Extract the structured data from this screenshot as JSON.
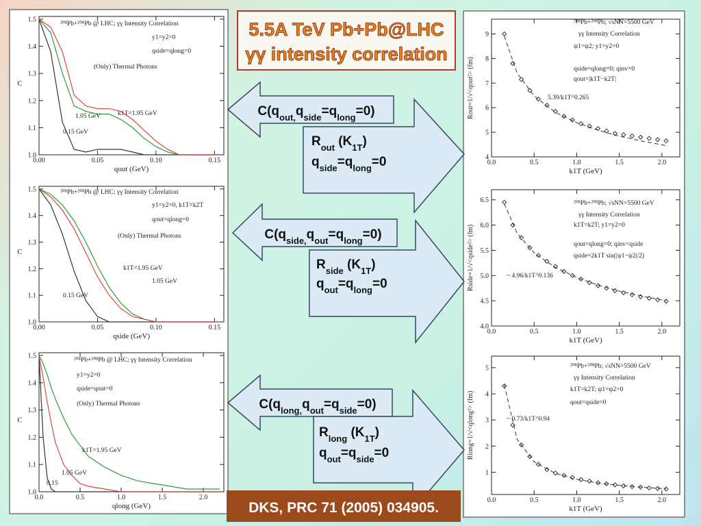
{
  "slide": {
    "title": [
      "5.5A TeV Pb+Pb@LHC",
      "γγ intensity correlation"
    ],
    "citation": "DKS, PRC 71 (2005) 034905.",
    "arrows": [
      {
        "correlator": [
          "C(q",
          "out,",
          "q",
          "side",
          "=q",
          "long",
          "=0)"
        ],
        "radius": [
          "R",
          "out",
          " (K",
          "1T",
          ")"
        ],
        "condition": [
          "q",
          "side",
          "=q",
          "long",
          "=0"
        ]
      },
      {
        "correlator": [
          "C(q",
          "side,",
          "q",
          "out",
          "=q",
          "long",
          "=0)"
        ],
        "radius": [
          "R",
          "side",
          " (K",
          "1T",
          ")"
        ],
        "condition": [
          "q",
          "out",
          "=q",
          "long",
          "=0"
        ]
      },
      {
        "correlator": [
          "C(q",
          "long,",
          "q",
          "out",
          "=q",
          "side",
          "=0)"
        ],
        "radius": [
          "R",
          "long",
          " (K",
          "1T",
          ")"
        ],
        "condition": [
          "q",
          "out",
          "=q",
          "side",
          "=0"
        ]
      }
    ]
  },
  "chart_data": [
    {
      "type": "line",
      "xlabel": "qout (GeV)",
      "ylabel": "C",
      "annotations": [
        "²⁰⁸Pb+²⁰⁸Pb @ LHC; γγ Intensity Correlation",
        "y1=y2=0",
        "qside=qlong=0",
        "(Only) Thermal Photons"
      ],
      "x": [
        0,
        0.01,
        0.02,
        0.03,
        0.04,
        0.05,
        0.06,
        0.07,
        0.08,
        0.09,
        0.1,
        0.11,
        0.12,
        0.13,
        0.14,
        0.15
      ],
      "xlim": [
        0,
        0.158
      ],
      "xticks": [
        {
          "value": 0,
          "label": "0.00"
        },
        0.05,
        {
          "value": 0.1,
          "label": "0.10"
        },
        0.15
      ],
      "ylim": [
        1,
        1.51
      ],
      "yticks": [
        {
          "value": 1,
          "label": "1.0"
        },
        1.1,
        1.2,
        1.3,
        1.4,
        1.5
      ],
      "series": [
        {
          "name": "0.15 GeV",
          "color": "#333333",
          "values": [
            1.5,
            1.38,
            1.12,
            1.02,
            1.01,
            1.02,
            1.02,
            1.02,
            1.01,
            1.0,
            1.0,
            1.0,
            1.0,
            1.0,
            1.0,
            1.0
          ]
        },
        {
          "name": "1.05 GeV",
          "color": "#2e9a3e",
          "values": [
            1.5,
            1.45,
            1.3,
            1.18,
            1.16,
            1.15,
            1.15,
            1.13,
            1.1,
            1.06,
            1.03,
            1.01,
            1.0,
            1.0,
            1.0,
            1.0
          ]
        },
        {
          "name": "k1T=1.95 GeV",
          "color": "#e0443a",
          "values": [
            1.5,
            1.47,
            1.38,
            1.22,
            1.18,
            1.17,
            1.17,
            1.16,
            1.13,
            1.09,
            1.05,
            1.02,
            1.0,
            1.0,
            1.0,
            1.0
          ]
        }
      ]
    },
    {
      "type": "line",
      "xlabel": "qside (GeV)",
      "ylabel": "C",
      "annotations": [
        "²⁰⁸Pb+²⁰⁸Pb @ LHC; γγ Intensity Correlation",
        "y1=y2=0,  k1T=k2T",
        "qout=qlong=0",
        "(Only) Thermal Photons"
      ],
      "x": [
        0,
        0.01,
        0.02,
        0.03,
        0.04,
        0.05,
        0.06,
        0.07,
        0.08,
        0.09,
        0.1,
        0.11,
        0.12,
        0.13,
        0.14,
        0.15
      ],
      "xlim": [
        0,
        0.158
      ],
      "xticks": [
        {
          "value": 0,
          "label": "0.00"
        },
        0.05,
        {
          "value": 0.1,
          "label": "0.10"
        },
        0.15
      ],
      "ylim": [
        1,
        1.51
      ],
      "yticks": [
        {
          "value": 1,
          "label": "1.0"
        },
        1.1,
        1.2,
        1.3,
        1.4,
        1.5
      ],
      "series": [
        {
          "name": "0.15 GeV",
          "color": "#333333",
          "values": [
            1.5,
            1.44,
            1.33,
            1.19,
            1.08,
            1.02,
            1.0,
            1.0,
            1.0,
            1.0,
            1.0,
            1.0,
            1.0,
            1.0,
            1.0,
            1.0
          ]
        },
        {
          "name": "1.05 GeV",
          "color": "#2e9a3e",
          "values": [
            1.5,
            1.48,
            1.44,
            1.38,
            1.3,
            1.21,
            1.13,
            1.07,
            1.03,
            1.01,
            1.0,
            1.0,
            1.0,
            1.0,
            1.0,
            1.0
          ]
        },
        {
          "name": "k1T=1.95 GeV",
          "color": "#e0443a",
          "values": [
            1.5,
            1.47,
            1.42,
            1.35,
            1.26,
            1.17,
            1.1,
            1.05,
            1.02,
            1.01,
            1.0,
            1.0,
            1.0,
            1.0,
            1.0,
            1.0
          ]
        }
      ]
    },
    {
      "type": "line",
      "xlabel": "qlong (GeV)",
      "ylabel": "C",
      "annotations": [
        "²⁰⁸Pb+²⁰⁸Pb @ LHC; γγ Intensity Correlation",
        "y1=y2=0",
        "qside=qout=0",
        "(Only) Thermal Photons"
      ],
      "x": [
        0,
        0.05,
        0.1,
        0.15,
        0.2,
        0.3,
        0.4,
        0.5,
        0.6,
        0.8,
        1.0,
        1.2,
        1.4,
        1.6,
        1.8,
        2.0,
        2.2
      ],
      "xlim": [
        0,
        2.25
      ],
      "xticks": [
        {
          "value": 0,
          "label": "0.0"
        },
        0.5,
        {
          "value": 1,
          "label": "1.0"
        },
        1.5,
        {
          "value": 2,
          "label": "2.0"
        }
      ],
      "ylim": [
        1,
        1.51
      ],
      "yticks": [
        {
          "value": 1,
          "label": "1.0"
        },
        1.1,
        1.2,
        1.3,
        1.4,
        1.5
      ],
      "series": [
        {
          "name": "0.15",
          "color": "#333333",
          "values": [
            1.5,
            1.2,
            1.05,
            1.01,
            1.0,
            1.0,
            1.0,
            1.0,
            1.0,
            1.0,
            1.0,
            1.0,
            1.0,
            1.0,
            1.0,
            1.0,
            1.0
          ]
        },
        {
          "name": "1.05 GeV",
          "color": "#e0443a",
          "values": [
            1.5,
            1.42,
            1.33,
            1.25,
            1.18,
            1.1,
            1.06,
            1.03,
            1.02,
            1.01,
            1.0,
            1.0,
            1.0,
            1.0,
            1.0,
            1.0,
            1.0
          ]
        },
        {
          "name": "k1T=1.95 GeV",
          "color": "#2e9a3e",
          "values": [
            1.5,
            1.47,
            1.43,
            1.38,
            1.34,
            1.27,
            1.21,
            1.17,
            1.13,
            1.09,
            1.06,
            1.04,
            1.03,
            1.02,
            1.01,
            1.01,
            1.01
          ]
        }
      ]
    },
    {
      "type": "scatter",
      "xlabel": "k1T (GeV)",
      "ylabel": "Rout=1/√<qout²> (fm)",
      "annotations": [
        "²⁰⁸Pb+²⁰⁸Pb; √sNN=5500 GeV",
        "γγ Intensity Correlation",
        "ψ1=ψ2; y1=y2=0",
        "qside=qlong=0; qinv=0",
        "qout=|k1T−k2T|"
      ],
      "xlim": [
        0,
        2.21
      ],
      "xticks": [
        {
          "value": 0,
          "label": "0.0"
        },
        0.5,
        {
          "value": 1,
          "label": "1.0"
        },
        1.5,
        {
          "value": 2,
          "label": "2.0"
        }
      ],
      "ylim": [
        4,
        9.6
      ],
      "yticks": [
        4,
        5,
        6,
        7,
        8,
        9
      ],
      "series": [
        {
          "color": "#333333",
          "marker": "diamond",
          "x": [
            0.15,
            0.25,
            0.35,
            0.45,
            0.55,
            0.65,
            0.75,
            0.85,
            0.95,
            1.05,
            1.15,
            1.25,
            1.35,
            1.45,
            1.55,
            1.65,
            1.75,
            1.85,
            1.95,
            2.05
          ],
          "values": [
            9.0,
            7.8,
            7.15,
            6.7,
            6.35,
            6.1,
            5.85,
            5.65,
            5.5,
            5.35,
            5.25,
            5.15,
            5.05,
            4.95,
            4.9,
            4.85,
            4.8,
            4.75,
            4.7,
            4.65
          ]
        },
        {
          "name": "5.39/k1T^0.265",
          "color": "#333333",
          "line": "dashed",
          "x": [
            0.15,
            0.3,
            0.5,
            0.75,
            1.0,
            1.25,
            1.5,
            1.75,
            2.05
          ],
          "values": [
            8.91,
            7.41,
            6.48,
            5.81,
            5.39,
            5.08,
            4.84,
            4.65,
            4.46
          ]
        }
      ]
    },
    {
      "type": "scatter",
      "xlabel": "k1T (GeV)",
      "ylabel": "Rside=1/√<qside²> (fm)",
      "annotations": [
        "²⁰⁸Pb+²⁰⁸Pb; √sNN=5500 GeV",
        "γγ Intensity Correlation",
        "k1T=k2T; y1=y2=0",
        "qout=qlong=0; qinv=qside",
        "qside=2k1T sin(|ψ1−ψ2|/2)"
      ],
      "xlim": [
        0,
        2.21
      ],
      "xticks": [
        {
          "value": 0,
          "label": "0.0"
        },
        0.5,
        {
          "value": 1,
          "label": "1.0"
        },
        1.5,
        {
          "value": 2,
          "label": "2.0"
        }
      ],
      "ylim": [
        4,
        6.7
      ],
      "yticks": [
        {
          "value": 4,
          "label": "4.0"
        },
        4.5,
        {
          "value": 5,
          "label": "5.0"
        },
        5.5,
        {
          "value": 6,
          "label": "6.0"
        },
        6.5
      ],
      "series": [
        {
          "color": "#333333",
          "marker": "diamond",
          "x": [
            0.15,
            0.25,
            0.35,
            0.45,
            0.55,
            0.65,
            0.75,
            0.85,
            0.95,
            1.05,
            1.15,
            1.25,
            1.35,
            1.45,
            1.55,
            1.65,
            1.75,
            1.85,
            1.95,
            2.05
          ],
          "values": [
            6.45,
            6.0,
            5.75,
            5.55,
            5.4,
            5.28,
            5.18,
            5.08,
            5.0,
            4.93,
            4.86,
            4.8,
            4.75,
            4.7,
            4.66,
            4.62,
            4.58,
            4.55,
            4.52,
            4.49
          ]
        },
        {
          "name": "~ 4.96/k1T^0.136",
          "color": "#333333",
          "line": "dashed",
          "x": [
            0.15,
            0.3,
            0.5,
            0.75,
            1.0,
            1.25,
            1.5,
            1.75,
            2.05
          ],
          "values": [
            6.42,
            5.84,
            5.45,
            5.16,
            4.96,
            4.81,
            4.69,
            4.6,
            4.5
          ]
        }
      ]
    },
    {
      "type": "scatter",
      "xlabel": "k1T (GeV)",
      "ylabel": "Rlong=1/√<qlong²> (fm)",
      "annotations": [
        "²⁰⁸Pb+²⁰⁸Pb; √sNN=5500 GeV",
        "γγ Intensity Correlation",
        "k1T=k2T; ψ1=ψ2=0",
        "qout=qside=0"
      ],
      "xlim": [
        0,
        2.21
      ],
      "xticks": [
        {
          "value": 0,
          "label": "0.0"
        },
        0.5,
        {
          "value": 1,
          "label": "1.0"
        },
        1.5,
        {
          "value": 2,
          "label": "2.0"
        }
      ],
      "ylim": [
        0.15,
        5.44
      ],
      "yticks": [
        1,
        2,
        3,
        4,
        5
      ],
      "series": [
        {
          "color": "#333333",
          "marker": "diamond",
          "x": [
            0.15,
            0.25,
            0.35,
            0.45,
            0.55,
            0.65,
            0.75,
            0.85,
            0.95,
            1.05,
            1.15,
            1.25,
            1.35,
            1.45,
            1.55,
            1.65,
            1.75,
            1.85,
            1.95,
            2.05
          ],
          "values": [
            4.3,
            2.8,
            2.05,
            1.6,
            1.3,
            1.1,
            0.97,
            0.88,
            0.8,
            0.72,
            0.66,
            0.6,
            0.56,
            0.52,
            0.48,
            0.45,
            0.43,
            0.4,
            0.38,
            0.36
          ]
        },
        {
          "name": "~ 0.73/k1T^0.94",
          "color": "#333333",
          "line": "dashed",
          "x": [
            0.15,
            0.3,
            0.5,
            0.75,
            1.0,
            1.25,
            1.5,
            1.75,
            2.05
          ],
          "values": [
            4.34,
            2.26,
            1.4,
            0.96,
            0.73,
            0.59,
            0.5,
            0.43,
            0.37
          ]
        }
      ]
    }
  ]
}
